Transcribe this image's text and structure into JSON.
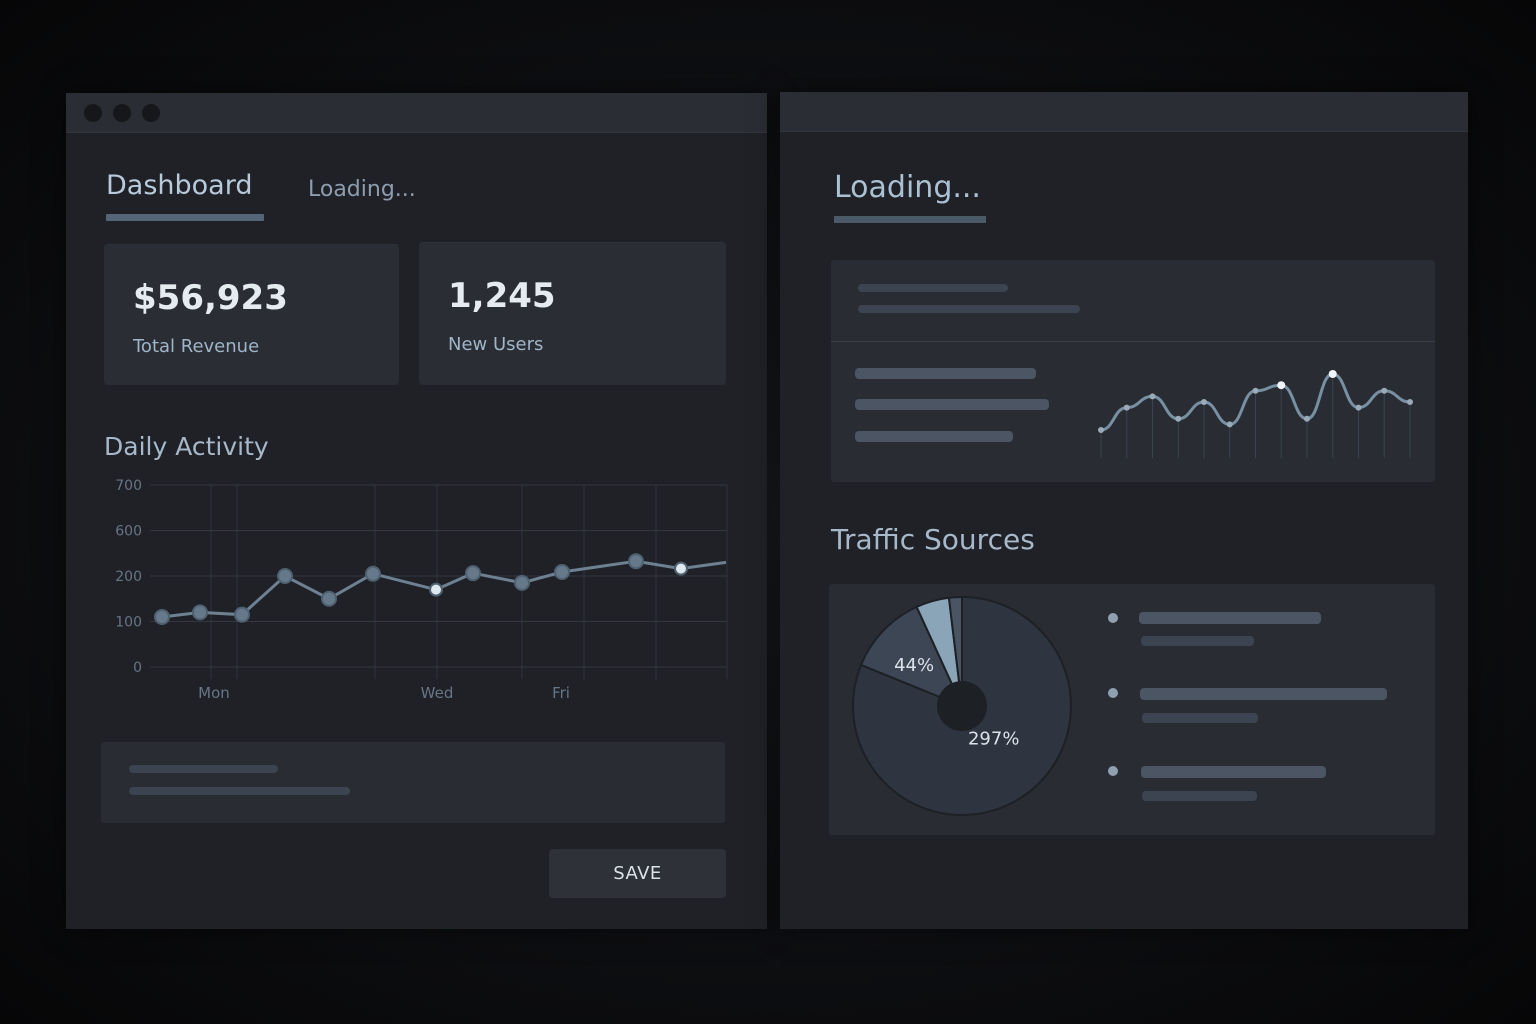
{
  "left_window": {
    "tabs": {
      "dashboard": "Dashboard",
      "loading": "Loading..."
    },
    "kpis": [
      {
        "value": "$56,923",
        "label": "Total Revenue"
      },
      {
        "value": "1,245",
        "label": "New Users"
      }
    ],
    "daily_activity": {
      "title": "Daily Activity"
    },
    "save_label": "SAVE"
  },
  "right_window": {
    "loading_title": "Loading...",
    "traffic_title": "Traffic Sources",
    "pie_labels": [
      "297%",
      "44%"
    ]
  },
  "colors": {
    "accent": "#7f96ab",
    "muted": "#3b4450",
    "text": "#dbe2ea"
  },
  "chart_data": [
    {
      "type": "line",
      "title": "Daily Activity",
      "x_ticks": [
        "Mon",
        "Wed",
        "Fri"
      ],
      "y_ticks": [
        "700",
        "600",
        "200",
        "100",
        "0"
      ],
      "series": [
        {
          "values": [
            110,
            120,
            115,
            200,
            150,
            220,
            170,
            225,
            185,
            235,
            330,
            265,
            320
          ]
        }
      ],
      "ylim": [
        0,
        700
      ],
      "grid": true
    },
    {
      "type": "line",
      "series": [
        {
          "values": [
            10,
            18,
            22,
            14,
            20,
            12,
            24,
            26,
            14,
            30,
            18,
            24,
            20
          ]
        }
      ],
      "grid": false
    },
    {
      "type": "pie",
      "slices": [
        {
          "label": "297%",
          "value": 297
        },
        {
          "label": "44%",
          "value": 44
        },
        {
          "value": 18
        },
        {
          "value": 7
        }
      ]
    }
  ]
}
